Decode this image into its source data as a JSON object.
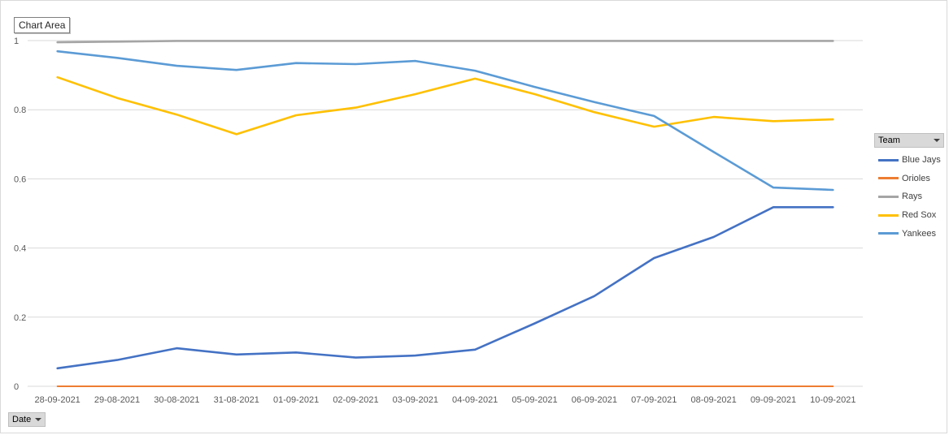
{
  "chart_area_label": "Chart Area",
  "filters": {
    "series_field": "Team",
    "category_field": "Date"
  },
  "chart_data": {
    "type": "line",
    "title": "",
    "xlabel": "",
    "ylabel": "",
    "ylim": [
      0,
      1
    ],
    "yticks": [
      "0",
      "0.2",
      "0.4",
      "0.6",
      "0.8",
      "1"
    ],
    "grid": true,
    "legend_position": "right",
    "categories": [
      "28-09-2021",
      "29-08-2021",
      "30-08-2021",
      "31-08-2021",
      "01-09-2021",
      "02-09-2021",
      "03-09-2021",
      "04-09-2021",
      "05-09-2021",
      "06-09-2021",
      "07-09-2021",
      "08-09-2021",
      "09-09-2021",
      "10-09-2021"
    ],
    "series": [
      {
        "name": "Blue Jays",
        "color": "#4472c4",
        "values": [
          0.052,
          0.076,
          0.11,
          0.092,
          0.098,
          0.083,
          0.089,
          0.106,
          0.182,
          0.261,
          0.371,
          0.432,
          0.518,
          0.518
        ]
      },
      {
        "name": "Orioles",
        "color": "#ed7d31",
        "values": [
          0,
          0,
          0,
          0,
          0,
          0,
          0,
          0,
          0,
          0,
          0,
          0,
          0,
          0
        ]
      },
      {
        "name": "Rays",
        "color": "#a5a5a5",
        "values": [
          0.995,
          0.997,
          0.999,
          0.999,
          0.999,
          0.999,
          0.999,
          0.999,
          0.999,
          0.999,
          0.999,
          0.999,
          0.999,
          0.999
        ]
      },
      {
        "name": "Red Sox",
        "color": "#ffc000",
        "values": [
          0.894,
          0.834,
          0.786,
          0.729,
          0.784,
          0.806,
          0.845,
          0.89,
          0.845,
          0.793,
          0.751,
          0.779,
          0.767,
          0.772
        ]
      },
      {
        "name": "Yankees",
        "color": "#5b9bd5",
        "values": [
          0.969,
          0.95,
          0.927,
          0.915,
          0.935,
          0.932,
          0.941,
          0.913,
          0.866,
          0.822,
          0.782,
          0.678,
          0.575,
          0.568
        ]
      }
    ]
  }
}
